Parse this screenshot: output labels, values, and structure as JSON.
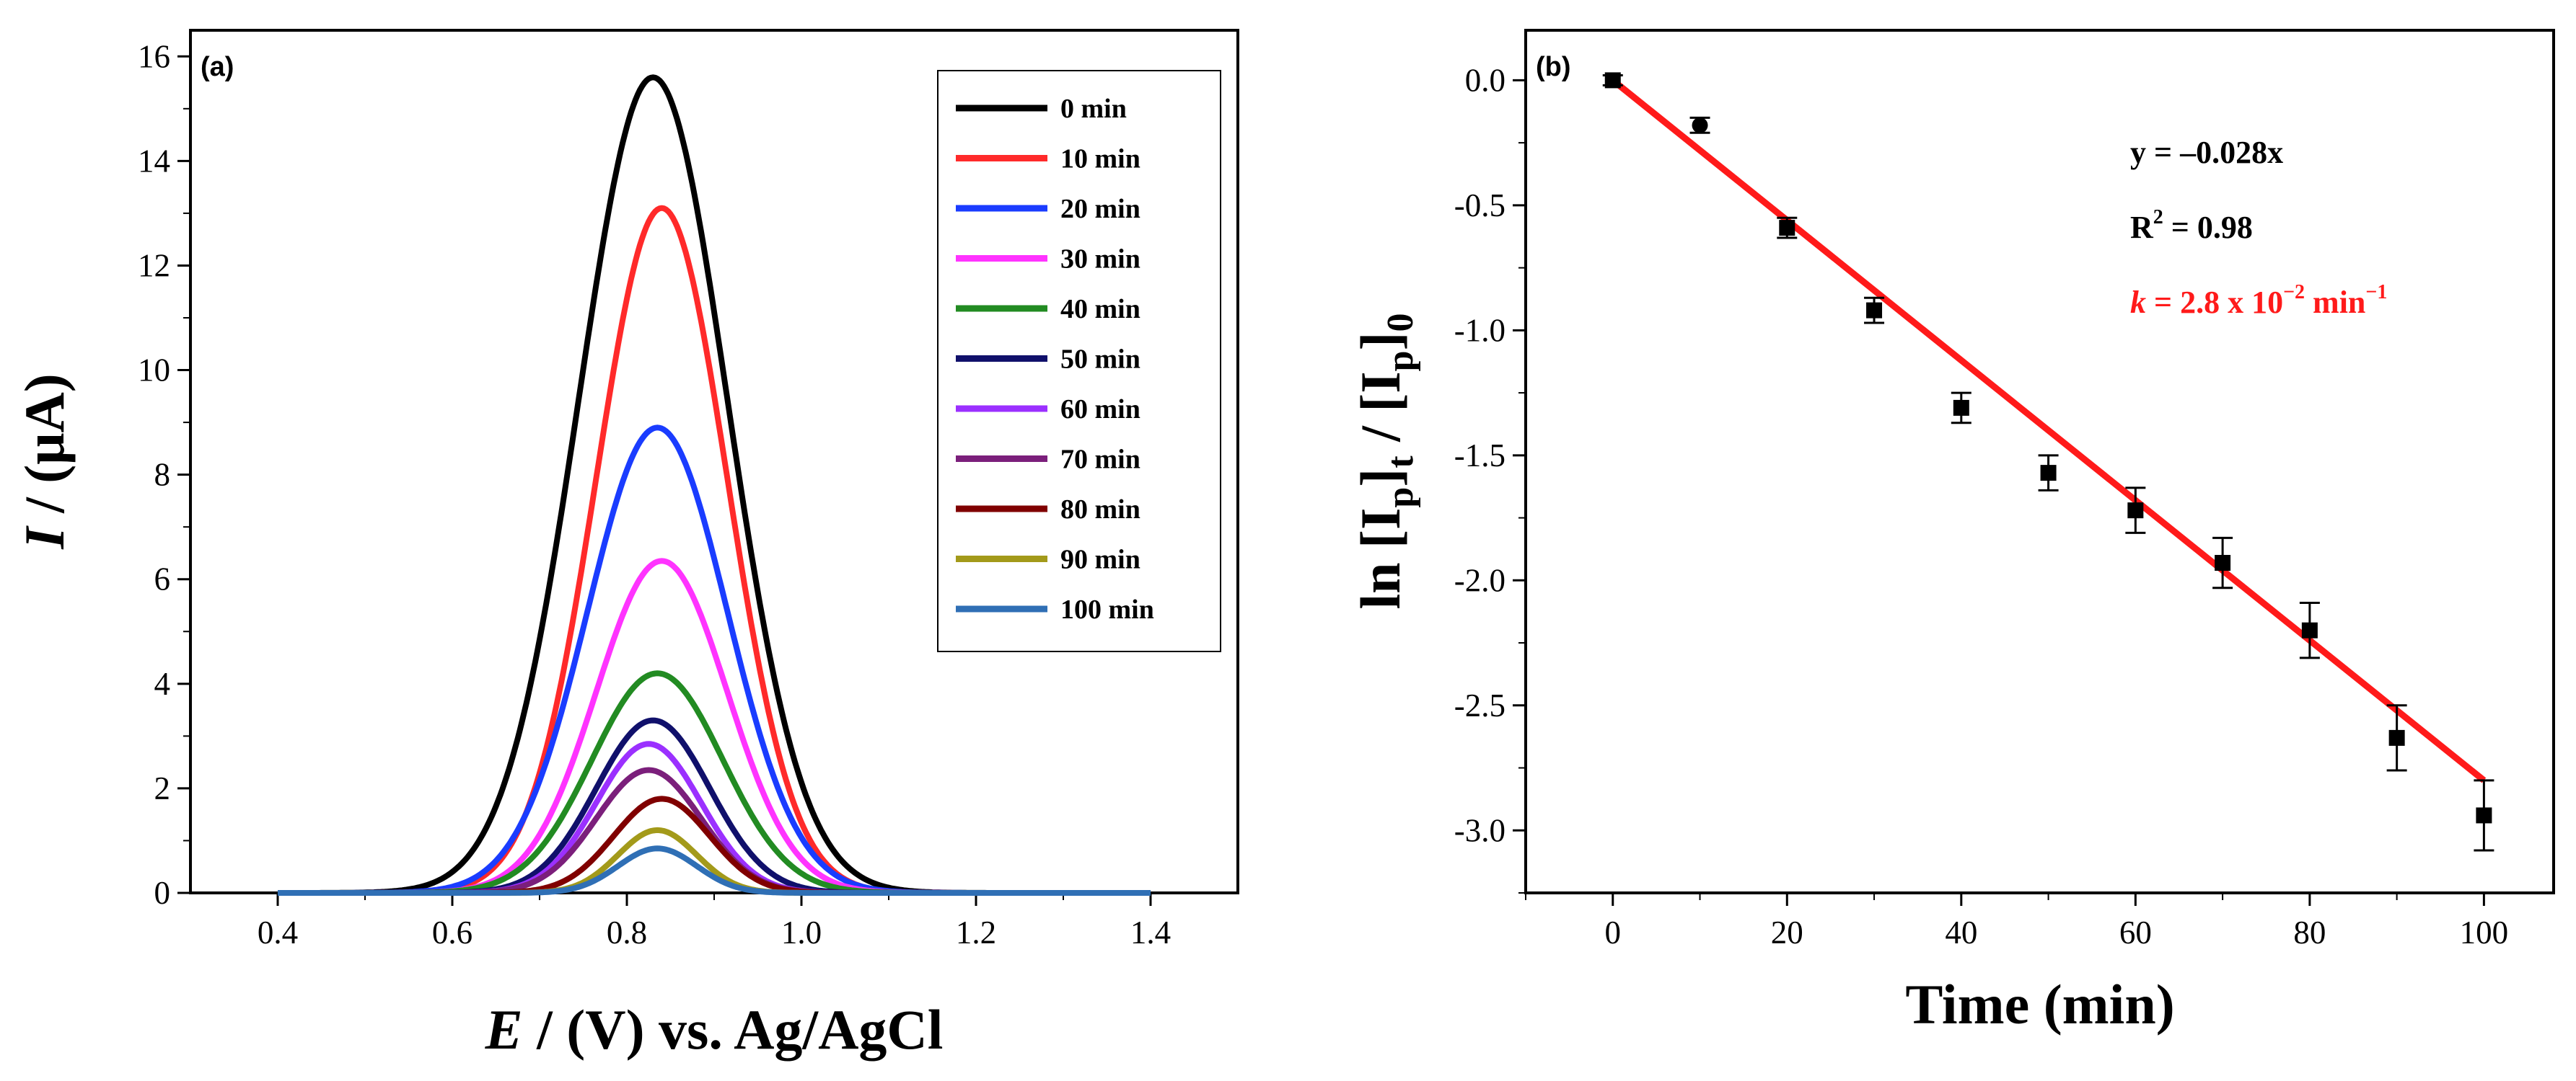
{
  "chart_data": [
    {
      "panel": "(a)",
      "type": "line",
      "xlabel_italic": "E",
      "xlabel_rest": " / (V) vs. Ag/AgCl",
      "ylabel_italic": "I",
      "ylabel_rest": " / (μA)",
      "xlim": [
        0.3,
        1.5
      ],
      "ylim": [
        0,
        16.5
      ],
      "xticks": [
        0.4,
        0.6,
        0.8,
        1.0,
        1.2,
        1.4
      ],
      "xtick_labels": [
        "0.4",
        "0.6",
        "0.8",
        "1.0",
        "1.2",
        "1.4"
      ],
      "yticks": [
        0,
        2,
        4,
        6,
        8,
        10,
        12,
        14,
        16
      ],
      "ytick_labels": [
        "0",
        "2",
        "4",
        "6",
        "8",
        "10",
        "12",
        "14",
        "16"
      ],
      "x_range": [
        0.4,
        1.4
      ],
      "legend_position": "top-right",
      "series": [
        {
          "name": "0 min",
          "color": "#000000",
          "peak_x": 0.83,
          "peak_y": 15.6,
          "width": 0.085
        },
        {
          "name": "10 min",
          "color": "#ff2a2a",
          "peak_x": 0.84,
          "peak_y": 13.1,
          "width": 0.075
        },
        {
          "name": "20 min",
          "color": "#1a3cff",
          "peak_x": 0.835,
          "peak_y": 8.9,
          "width": 0.08
        },
        {
          "name": "30 min",
          "color": "#ff33ff",
          "peak_x": 0.84,
          "peak_y": 6.35,
          "width": 0.075
        },
        {
          "name": "40 min",
          "color": "#228b22",
          "peak_x": 0.835,
          "peak_y": 4.2,
          "width": 0.075
        },
        {
          "name": "50 min",
          "color": "#10106b",
          "peak_x": 0.83,
          "peak_y": 3.3,
          "width": 0.065
        },
        {
          "name": "60 min",
          "color": "#9b30ff",
          "peak_x": 0.825,
          "peak_y": 2.85,
          "width": 0.06
        },
        {
          "name": "70 min",
          "color": "#7b1f7b",
          "peak_x": 0.825,
          "peak_y": 2.35,
          "width": 0.06
        },
        {
          "name": "80 min",
          "color": "#800000",
          "peak_x": 0.84,
          "peak_y": 1.8,
          "width": 0.055
        },
        {
          "name": "90 min",
          "color": "#a39a1a",
          "peak_x": 0.835,
          "peak_y": 1.2,
          "width": 0.045
        },
        {
          "name": "100 min",
          "color": "#2f6fb5",
          "peak_x": 0.835,
          "peak_y": 0.85,
          "width": 0.045
        }
      ]
    },
    {
      "panel": "(b)",
      "type": "scatter",
      "xlabel": "Time (min)",
      "ylabel": "ln [I_p]_t / [I_p]_0",
      "xlim": [
        -10,
        108
      ],
      "ylim": [
        -3.25,
        0.2
      ],
      "xticks": [
        0,
        20,
        40,
        60,
        80,
        100
      ],
      "xtick_labels": [
        "0",
        "20",
        "40",
        "60",
        "80",
        "100"
      ],
      "yticks": [
        0.0,
        -0.5,
        -1.0,
        -1.5,
        -2.0,
        -2.5,
        -3.0
      ],
      "ytick_labels": [
        "0.0",
        "-0.5",
        "-1.0",
        "-1.5",
        "-2.0",
        "-2.5",
        "-3.0"
      ],
      "x": [
        0,
        10,
        20,
        30,
        40,
        50,
        60,
        70,
        80,
        90,
        100
      ],
      "y": [
        0.0,
        -0.18,
        -0.59,
        -0.92,
        -1.31,
        -1.57,
        -1.72,
        -1.93,
        -2.2,
        -2.63,
        -2.94
      ],
      "error": [
        0.02,
        0.03,
        0.04,
        0.05,
        0.06,
        0.07,
        0.09,
        0.1,
        0.11,
        0.13,
        0.14
      ],
      "fit": {
        "slope": -0.028,
        "intercept": 0.0,
        "x_range": [
          0,
          100
        ],
        "color": "#ff1a1a"
      },
      "annotations": {
        "equation": "y = –0.028x",
        "r2_prefix": "R",
        "r2_sup": "2",
        "r2_suffix": " = 0.98",
        "k_var": "k",
        "k_text": " = 2.8 x 10",
        "k_exp": "−2",
        "k_unit": " min",
        "k_unit_exp": "−1"
      }
    }
  ]
}
